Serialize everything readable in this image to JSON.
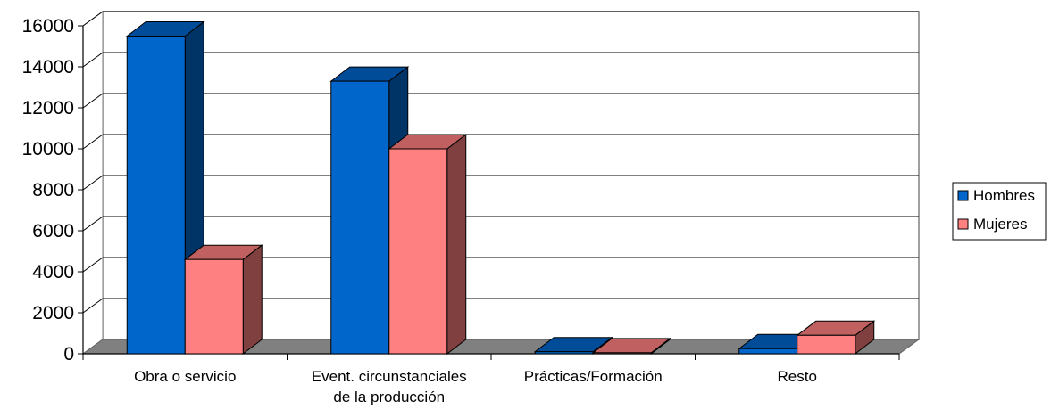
{
  "chart_data": {
    "type": "bar",
    "categories": [
      [
        "Obra o servicio"
      ],
      [
        "Event. circunstanciales",
        "de la producción"
      ],
      [
        "Prácticas/Formación"
      ],
      [
        "Resto"
      ]
    ],
    "series": [
      {
        "name": "Hombres",
        "values": [
          15500,
          13300,
          100,
          250
        ],
        "color": "#0066CC",
        "side_color": "#003366",
        "top_color": "#004C99"
      },
      {
        "name": "Mujeres",
        "values": [
          4600,
          10000,
          50,
          900
        ],
        "color": "#FF8080",
        "side_color": "#804040",
        "top_color": "#C06060"
      }
    ],
    "yticks": [
      "0",
      "2000",
      "4000",
      "6000",
      "8000",
      "10000",
      "12000",
      "14000",
      "16000"
    ],
    "ylim": [
      0,
      16000
    ],
    "title": "",
    "xlabel": "",
    "ylabel": "",
    "grid": true,
    "legend_position": "right"
  }
}
